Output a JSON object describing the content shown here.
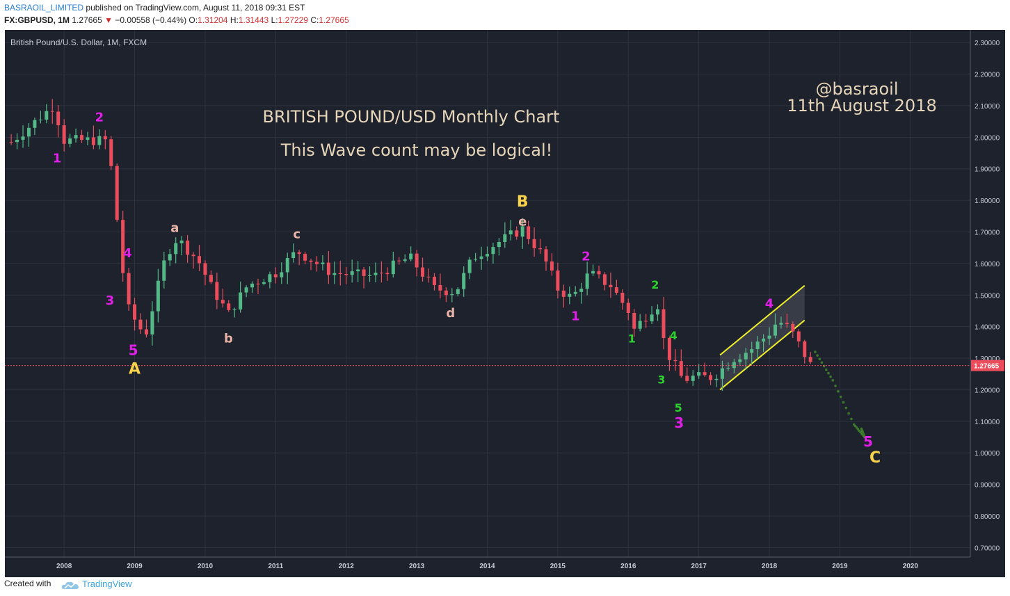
{
  "header": {
    "author": "BASRAOIL_LIMITED",
    "published": "published on TradingView.com, August 11, 2018 09:31 EST",
    "symbol": "FX:GBPUSD, 1M",
    "last": "1.27665",
    "change_arrow": "▼",
    "change": "−0.00558 (−0.44%)",
    "o_label": "O:",
    "o_val": "1.31204",
    "h_label": "H:",
    "h_val": "1.31443",
    "l_label": "L:",
    "l_val": "1.27229",
    "c_label": "C:",
    "c_val": "1.27665"
  },
  "footer": {
    "created_with": "Created with",
    "brand": "TradingView",
    "logo_icon": "tradingview-cloud-icon"
  },
  "chart_data": {
    "type": "candlestick",
    "series_title": "British Pound/U.S. Dollar, 1M, FXCM",
    "ylim": [
      0.67,
      2.34
    ],
    "y_ticks": [
      "2.30000",
      "2.20000",
      "2.10000",
      "2.00000",
      "1.90000",
      "1.80000",
      "1.70000",
      "1.60000",
      "1.50000",
      "1.40000",
      "1.30000",
      "1.20000",
      "1.10000",
      "1.00000",
      "0.90000",
      "0.80000",
      "0.70000"
    ],
    "x_ticks": [
      "2008",
      "2009",
      "2010",
      "2011",
      "2012",
      "2013",
      "2014",
      "2015",
      "2016",
      "2017",
      "2018",
      "2019",
      "2020"
    ],
    "last_price": 1.27665,
    "last_price_label": "1.27665",
    "colors": {
      "background": "#1e222d",
      "up": "#53b987",
      "down": "#eb4d5c",
      "grid": "#2e3340",
      "price_line": "#eb4d5c",
      "channel": "#f0f02a",
      "projection": "#3a7a2a",
      "text": "#e6d5b8",
      "magenta": "#e21fe8",
      "yellow": "#f7d24a",
      "green": "#2dd32d",
      "pink": "#e8b4a8"
    },
    "titles": [
      "BRITISH POUND/USD Monthly Chart",
      "This Wave count may be logical!"
    ],
    "signature": [
      "@basraoil",
      "11th August 2018"
    ],
    "anchors": [
      [
        2007.25,
        1.985
      ],
      [
        2007.85,
        2.1
      ],
      [
        2008.0,
        1.99
      ],
      [
        2008.5,
        1.99
      ],
      [
        2008.6,
        1.99
      ],
      [
        2008.7,
        1.86
      ],
      [
        2008.8,
        1.62
      ],
      [
        2008.92,
        1.45
      ],
      [
        2009.15,
        1.37
      ],
      [
        2009.45,
        1.63
      ],
      [
        2009.6,
        1.68
      ],
      [
        2009.9,
        1.61
      ],
      [
        2010.1,
        1.52
      ],
      [
        2010.33,
        1.44
      ],
      [
        2010.6,
        1.53
      ],
      [
        2011.0,
        1.57
      ],
      [
        2011.3,
        1.64
      ],
      [
        2011.8,
        1.57
      ],
      [
        2012.4,
        1.56
      ],
      [
        2012.9,
        1.62
      ],
      [
        2013.25,
        1.52
      ],
      [
        2013.55,
        1.51
      ],
      [
        2013.8,
        1.62
      ],
      [
        2014.1,
        1.66
      ],
      [
        2014.5,
        1.71
      ],
      [
        2014.8,
        1.62
      ],
      [
        2015.0,
        1.52
      ],
      [
        2015.2,
        1.49
      ],
      [
        2015.45,
        1.57
      ],
      [
        2015.75,
        1.53
      ],
      [
        2016.0,
        1.45
      ],
      [
        2016.08,
        1.39
      ],
      [
        2016.35,
        1.46
      ],
      [
        2016.42,
        1.47
      ],
      [
        2016.52,
        1.33
      ],
      [
        2016.78,
        1.23
      ],
      [
        2016.9,
        1.24
      ],
      [
        2017.2,
        1.24
      ],
      [
        2017.5,
        1.3
      ],
      [
        2017.75,
        1.33
      ],
      [
        2018.0,
        1.38
      ],
      [
        2018.12,
        1.42
      ],
      [
        2018.3,
        1.39
      ],
      [
        2018.58,
        1.28
      ]
    ],
    "projection": [
      [
        2018.65,
        1.32
      ],
      [
        2018.9,
        1.23
      ],
      [
        2019.2,
        1.09
      ],
      [
        2019.35,
        1.05
      ],
      [
        2019.3,
        1.08
      ]
    ],
    "channel": {
      "upper": [
        [
          2017.3,
          1.31
        ],
        [
          2018.5,
          1.53
        ]
      ],
      "lower": [
        [
          2017.3,
          1.2
        ],
        [
          2018.5,
          1.42
        ]
      ],
      "fill": [
        [
          2017.3,
          1.31
        ],
        [
          2018.5,
          1.53
        ],
        [
          2018.5,
          1.42
        ],
        [
          2017.3,
          1.2
        ]
      ]
    },
    "labels": [
      {
        "text": "1",
        "x": 2007.9,
        "y": 1.92,
        "color": "magenta",
        "size": 18
      },
      {
        "text": "2",
        "x": 2008.5,
        "y": 2.05,
        "color": "magenta",
        "size": 18
      },
      {
        "text": "4",
        "x": 2008.9,
        "y": 1.62,
        "color": "magenta",
        "size": 18
      },
      {
        "text": "3",
        "x": 2008.65,
        "y": 1.47,
        "color": "magenta",
        "size": 18
      },
      {
        "text": "5",
        "x": 2008.98,
        "y": 1.31,
        "color": "magenta",
        "size": 20
      },
      {
        "text": "A",
        "x": 2009.0,
        "y": 1.25,
        "color": "yellow",
        "size": 22
      },
      {
        "text": "a",
        "x": 2009.57,
        "y": 1.7,
        "color": "pink",
        "size": 18
      },
      {
        "text": "b",
        "x": 2010.33,
        "y": 1.35,
        "color": "pink",
        "size": 18
      },
      {
        "text": "c",
        "x": 2011.3,
        "y": 1.68,
        "color": "pink",
        "size": 18
      },
      {
        "text": "d",
        "x": 2013.48,
        "y": 1.43,
        "color": "pink",
        "size": 18
      },
      {
        "text": "e",
        "x": 2014.5,
        "y": 1.72,
        "color": "pink",
        "size": 18
      },
      {
        "text": "B",
        "x": 2014.5,
        "y": 1.78,
        "color": "yellow",
        "size": 22
      },
      {
        "text": "1",
        "x": 2015.25,
        "y": 1.42,
        "color": "magenta",
        "size": 18
      },
      {
        "text": "2",
        "x": 2015.4,
        "y": 1.61,
        "color": "magenta",
        "size": 18
      },
      {
        "text": "1",
        "x": 2016.05,
        "y": 1.35,
        "color": "green",
        "size": 16
      },
      {
        "text": "2",
        "x": 2016.38,
        "y": 1.52,
        "color": "green",
        "size": 16
      },
      {
        "text": "4",
        "x": 2016.64,
        "y": 1.36,
        "color": "green",
        "size": 16
      },
      {
        "text": "3",
        "x": 2016.47,
        "y": 1.22,
        "color": "green",
        "size": 16
      },
      {
        "text": "5",
        "x": 2016.71,
        "y": 1.13,
        "color": "green",
        "size": 16
      },
      {
        "text": "3",
        "x": 2016.72,
        "y": 1.08,
        "color": "magenta",
        "size": 20
      },
      {
        "text": "4",
        "x": 2018.0,
        "y": 1.46,
        "color": "magenta",
        "size": 18
      },
      {
        "text": "5",
        "x": 2019.4,
        "y": 1.02,
        "color": "magenta",
        "size": 20
      },
      {
        "text": "C",
        "x": 2019.5,
        "y": 0.97,
        "color": "yellow",
        "size": 22
      }
    ]
  }
}
